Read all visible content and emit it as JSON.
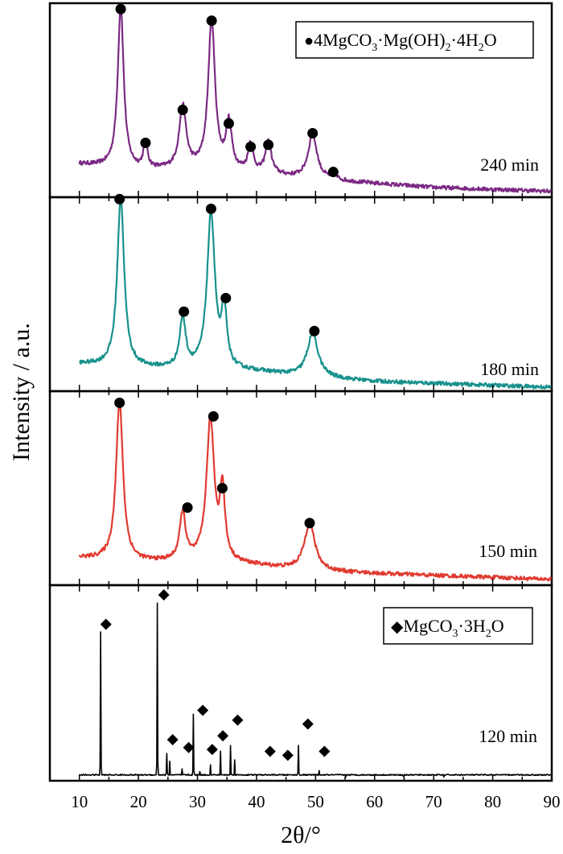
{
  "chart_data": {
    "type": "line",
    "title": "",
    "xlabel": "2θ/°",
    "ylabel": "Intensity / a.u.",
    "xlim": [
      5,
      90
    ],
    "xticks": [
      10,
      20,
      30,
      40,
      50,
      60,
      70,
      80,
      90
    ],
    "xtick_labels": [
      "10",
      "20",
      "30",
      "40",
      "50",
      "60",
      "70",
      "80",
      "90"
    ],
    "legends": {
      "nesquehonite": {
        "marker": "◆",
        "prefix": "MgCO",
        "sub1": "3",
        "rest": "·3H",
        "sub2": "2",
        "suffix": "O"
      },
      "hydromagnesite": {
        "marker": "●",
        "prefix": "4MgCO",
        "sub1": "3",
        "mid": "·Mg(OH)",
        "sub2": "2",
        "rest": "·4H",
        "sub3": "2",
        "suffix": "O"
      }
    },
    "series": [
      {
        "name": "240 min",
        "label": "240 min",
        "color": "#7b2a84",
        "marker": "circle",
        "peaks": [
          [
            17.0,
            0.92
          ],
          [
            21.2,
            0.22
          ],
          [
            27.5,
            0.4
          ],
          [
            32.4,
            0.86
          ],
          [
            35.3,
            0.33
          ],
          [
            39.0,
            0.22
          ],
          [
            42.0,
            0.23
          ],
          [
            49.5,
            0.28
          ],
          [
            53.0,
            0.08
          ]
        ],
        "peak_widths": [
          0.6,
          0.4,
          0.7,
          0.7,
          0.6,
          0.5,
          0.6,
          0.9,
          0.5
        ],
        "baseline": [
          [
            10,
            0.17
          ],
          [
            20,
            0.14
          ],
          [
            30,
            0.14
          ],
          [
            40,
            0.12
          ],
          [
            50,
            0.09
          ],
          [
            60,
            0.07
          ],
          [
            70,
            0.05
          ],
          [
            80,
            0.04
          ],
          [
            90,
            0.03
          ]
        ],
        "markers": [
          17.0,
          21.2,
          27.5,
          32.4,
          35.3,
          39.0,
          42.0,
          49.5,
          53.0
        ],
        "marker_y": [
          0.97,
          0.28,
          0.45,
          0.91,
          0.38,
          0.26,
          0.27,
          0.33,
          0.13
        ]
      },
      {
        "name": "180 min",
        "label": "180 min",
        "color": "#18918c",
        "marker": "circle",
        "peaks": [
          [
            17.0,
            0.94
          ],
          [
            27.5,
            0.32
          ],
          [
            32.3,
            0.88
          ],
          [
            34.5,
            0.4
          ],
          [
            49.5,
            0.26
          ]
        ],
        "peak_widths": [
          0.7,
          0.6,
          0.8,
          0.5,
          1.1
        ],
        "baseline": [
          [
            10,
            0.14
          ],
          [
            20,
            0.12
          ],
          [
            30,
            0.11
          ],
          [
            40,
            0.1
          ],
          [
            50,
            0.07
          ],
          [
            60,
            0.05
          ],
          [
            70,
            0.04
          ],
          [
            80,
            0.03
          ],
          [
            90,
            0.02
          ]
        ],
        "markers": [
          16.8,
          27.7,
          32.3,
          34.8,
          49.8
        ],
        "marker_y": [
          0.99,
          0.41,
          0.94,
          0.48,
          0.31
        ]
      },
      {
        "name": "150 min",
        "label": "150 min",
        "color": "#e03a30",
        "marker": "circle",
        "peaks": [
          [
            16.8,
            0.89
          ],
          [
            27.5,
            0.31
          ],
          [
            32.2,
            0.81
          ],
          [
            34.2,
            0.46
          ],
          [
            49.0,
            0.28
          ]
        ],
        "peak_widths": [
          0.7,
          0.6,
          0.8,
          0.5,
          1.1
        ],
        "baseline": [
          [
            10,
            0.14
          ],
          [
            20,
            0.12
          ],
          [
            30,
            0.12
          ],
          [
            40,
            0.1
          ],
          [
            50,
            0.07
          ],
          [
            60,
            0.06
          ],
          [
            70,
            0.05
          ],
          [
            80,
            0.04
          ],
          [
            90,
            0.03
          ]
        ],
        "markers": [
          16.8,
          28.3,
          32.7,
          34.2,
          49.0
        ],
        "marker_y": [
          0.94,
          0.4,
          0.87,
          0.5,
          0.32
        ]
      },
      {
        "name": "120 min",
        "label": "120 min",
        "color": "#000000",
        "marker": "diamond",
        "peaks": [
          [
            13.6,
            0.76
          ],
          [
            23.2,
            0.91
          ],
          [
            24.8,
            0.14
          ],
          [
            25.3,
            0.1
          ],
          [
            27.4,
            0.06
          ],
          [
            29.3,
            0.34
          ],
          [
            30.4,
            0.05
          ],
          [
            32.2,
            0.08
          ],
          [
            33.9,
            0.15
          ],
          [
            35.6,
            0.18
          ],
          [
            36.3,
            0.11
          ],
          [
            41.8,
            0.03
          ],
          [
            44.8,
            0.03
          ],
          [
            47.1,
            0.18
          ],
          [
            50.6,
            0.05
          ],
          [
            55.1,
            0.02
          ],
          [
            64.9,
            0.02
          ],
          [
            71.7,
            0.02
          ]
        ],
        "peak_widths": [
          0.12,
          0.12,
          0.12,
          0.1,
          0.1,
          0.12,
          0.1,
          0.1,
          0.1,
          0.1,
          0.1,
          0.1,
          0.1,
          0.12,
          0.1,
          0.1,
          0.1,
          0.1
        ],
        "baseline": [
          [
            10,
            0.03
          ],
          [
            90,
            0.03
          ]
        ],
        "markers": [
          14.5,
          24.3,
          25.8,
          28.5,
          30.9,
          32.5,
          34.3,
          36.8,
          42.3,
          45.3,
          48.7,
          51.5
        ],
        "marker_y": [
          0.8,
          0.95,
          0.21,
          0.17,
          0.36,
          0.16,
          0.23,
          0.31,
          0.15,
          0.13,
          0.29,
          0.15
        ]
      }
    ]
  }
}
